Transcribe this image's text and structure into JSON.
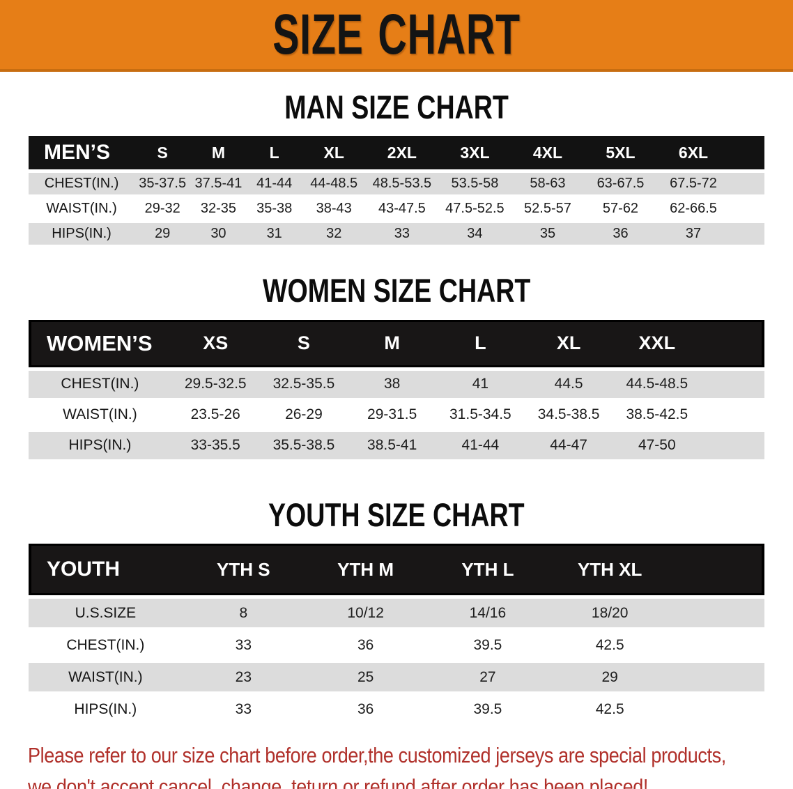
{
  "banner": {
    "title": "SIZE CHART"
  },
  "colors": {
    "accent-orange": "#e67e17",
    "accent-orange-dark": "#c76d10",
    "row-gray": "#dcdcdc",
    "notice-red": "#b0302a"
  },
  "men_chart": {
    "heading": "MAN SIZE CHART",
    "header": [
      "MEN’S",
      "S",
      "M",
      "L",
      "XL",
      "2XL",
      "3XL",
      "4XL",
      "5XL",
      "6XL"
    ],
    "rows": [
      {
        "label": "CHEST(IN.)",
        "values": [
          "35-37.5",
          "37.5-41",
          "41-44",
          "44-48.5",
          "48.5-53.5",
          "53.5-58",
          "58-63",
          "63-67.5",
          "67.5-72"
        ]
      },
      {
        "label": "WAIST(IN.)",
        "values": [
          "29-32",
          "32-35",
          "35-38",
          "38-43",
          "43-47.5",
          "47.5-52.5",
          "52.5-57",
          "57-62",
          "62-66.5"
        ]
      },
      {
        "label": "HIPS(IN.)",
        "values": [
          "29",
          "30",
          "31",
          "32",
          "33",
          "34",
          "35",
          "36",
          "37"
        ]
      }
    ]
  },
  "women_chart": {
    "heading": "WOMEN SIZE CHART",
    "header": [
      "WOMEN’S",
      "XS",
      "S",
      "M",
      "L",
      "XL",
      "XXL"
    ],
    "rows": [
      {
        "label": "CHEST(IN.)",
        "values": [
          "29.5-32.5",
          "32.5-35.5",
          "38",
          "41",
          "44.5",
          "44.5-48.5"
        ]
      },
      {
        "label": "WAIST(IN.)",
        "values": [
          "23.5-26",
          "26-29",
          "29-31.5",
          "31.5-34.5",
          "34.5-38.5",
          "38.5-42.5"
        ]
      },
      {
        "label": "HIPS(IN.)",
        "values": [
          "33-35.5",
          "35.5-38.5",
          "38.5-41",
          "41-44",
          "44-47",
          "47-50"
        ]
      }
    ]
  },
  "youth_chart": {
    "heading": "YOUTH SIZE CHART",
    "header": [
      "YOUTH",
      "YTH S",
      "YTH M",
      "YTH L",
      "YTH XL"
    ],
    "rows": [
      {
        "label": "U.S.SIZE",
        "values": [
          "8",
          "10/12",
          "14/16",
          "18/20"
        ]
      },
      {
        "label": "CHEST(IN.)",
        "values": [
          "33",
          "36",
          "39.5",
          "42.5"
        ]
      },
      {
        "label": "WAIST(IN.)",
        "values": [
          "23",
          "25",
          "27",
          "29"
        ]
      },
      {
        "label": "HIPS(IN.)",
        "values": [
          "33",
          "36",
          "39.5",
          "42.5"
        ]
      }
    ]
  },
  "footer": {
    "line1": "Please refer to our size chart before order,the customized jerseys are special products,",
    "line2": "we don't accept cancel, change, teturn or refund after order has been placed!"
  }
}
